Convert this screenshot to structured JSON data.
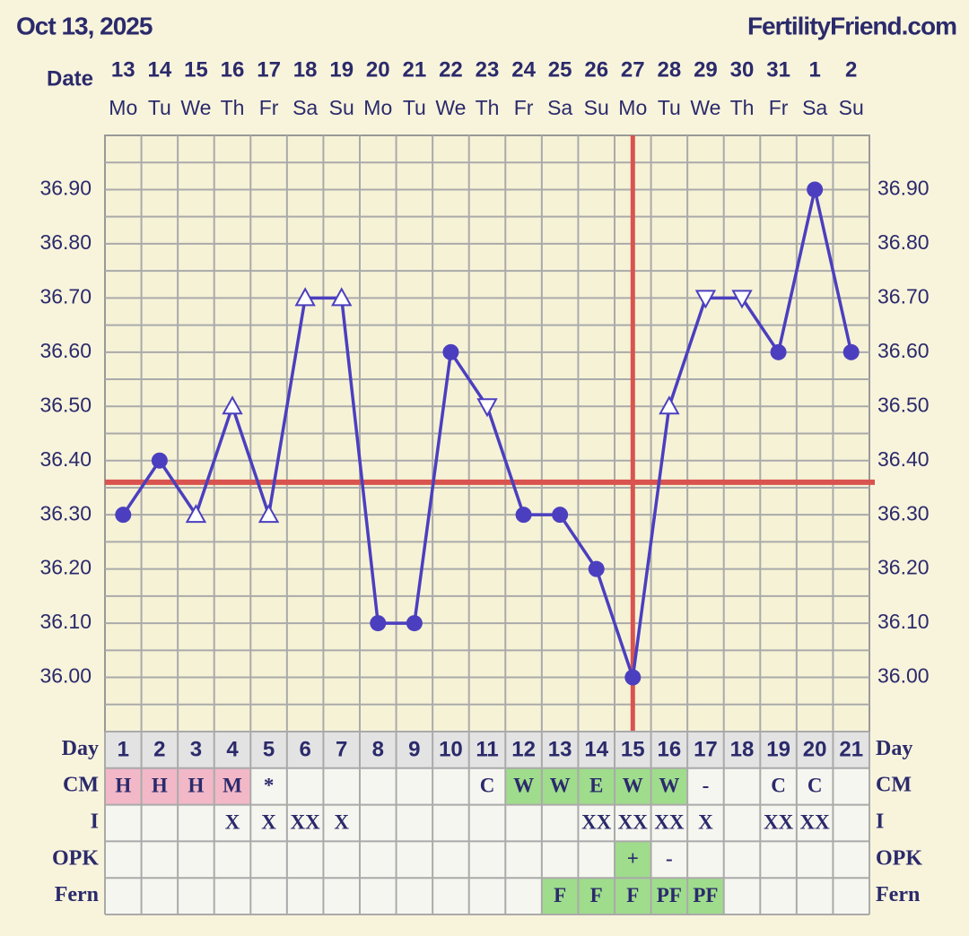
{
  "header": {
    "date": "Oct 13, 2025",
    "site": "FertilityFriend.com"
  },
  "chart_data": {
    "type": "line",
    "date_label": "Date",
    "dates": [
      "13",
      "14",
      "15",
      "16",
      "17",
      "18",
      "19",
      "20",
      "21",
      "22",
      "23",
      "24",
      "25",
      "26",
      "27",
      "28",
      "29",
      "30",
      "31",
      "1",
      "2"
    ],
    "weekdays": [
      "Mo",
      "Tu",
      "We",
      "Th",
      "Fr",
      "Sa",
      "Su",
      "Mo",
      "Tu",
      "We",
      "Th",
      "Fr",
      "Sa",
      "Su",
      "Mo",
      "Tu",
      "We",
      "Th",
      "Fr",
      "Sa",
      "Su"
    ],
    "values": [
      36.3,
      36.4,
      36.3,
      36.5,
      36.3,
      36.7,
      36.7,
      36.1,
      36.1,
      36.6,
      36.5,
      36.3,
      36.3,
      36.2,
      36.0,
      36.5,
      36.7,
      36.7,
      36.6,
      36.9,
      36.6
    ],
    "markers": [
      "circle",
      "circle",
      "up",
      "up",
      "up",
      "up",
      "up",
      "circle",
      "circle",
      "circle",
      "down",
      "circle",
      "circle",
      "circle",
      "circle",
      "up",
      "down",
      "down",
      "circle",
      "circle",
      "circle"
    ],
    "color": "#4b3fbf",
    "ylim": [
      35.9,
      37.0
    ],
    "yticks": [
      {
        "value": 36.0,
        "label": "36.00"
      },
      {
        "value": 36.1,
        "label": "36.10"
      },
      {
        "value": 36.2,
        "label": "36.20"
      },
      {
        "value": 36.3,
        "label": "36.30"
      },
      {
        "value": 36.4,
        "label": "36.40"
      },
      {
        "value": 36.5,
        "label": "36.50"
      },
      {
        "value": 36.6,
        "label": "36.60"
      },
      {
        "value": 36.7,
        "label": "36.70"
      },
      {
        "value": 36.8,
        "label": "36.80"
      },
      {
        "value": 36.9,
        "label": "36.90"
      }
    ],
    "grid": true,
    "coverline": 36.36,
    "ovulation_day": 15,
    "reference_color": "#d9534f",
    "day_label": "Day",
    "days": [
      1,
      2,
      3,
      4,
      5,
      6,
      7,
      8,
      9,
      10,
      11,
      12,
      13,
      14,
      15,
      16,
      17,
      18,
      19,
      20,
      21
    ],
    "rows": [
      {
        "label": "CM",
        "cells": [
          "H",
          "H",
          "H",
          "M",
          "*",
          null,
          null,
          null,
          null,
          null,
          "C",
          "W",
          "W",
          "E",
          "W",
          "W",
          "-",
          null,
          "C",
          "C",
          null
        ],
        "colors": [
          "#f2b8c8",
          "#f2b8c8",
          "#f2b8c8",
          "#f2b8c8",
          null,
          null,
          null,
          null,
          null,
          null,
          null,
          "#9fdc8c",
          "#9fdc8c",
          "#9fdc8c",
          "#9fdc8c",
          "#9fdc8c",
          null,
          null,
          null,
          null,
          null
        ]
      },
      {
        "label": "I",
        "cells": [
          null,
          null,
          null,
          "X",
          "X",
          "XX",
          "X",
          null,
          null,
          null,
          null,
          null,
          null,
          "XX",
          "XX",
          "XX",
          "X",
          null,
          "XX",
          "XX",
          null
        ]
      },
      {
        "label": "OPK",
        "cells": [
          null,
          null,
          null,
          null,
          null,
          null,
          null,
          null,
          null,
          null,
          null,
          null,
          null,
          null,
          "+",
          "-",
          null,
          null,
          null,
          null,
          null
        ],
        "colors": [
          null,
          null,
          null,
          null,
          null,
          null,
          null,
          null,
          null,
          null,
          null,
          null,
          null,
          null,
          "#9fdc8c",
          null,
          null,
          null,
          null,
          null,
          null
        ]
      },
      {
        "label": "Fern",
        "cells": [
          null,
          null,
          null,
          null,
          null,
          null,
          null,
          null,
          null,
          null,
          null,
          null,
          "F",
          "F",
          "F",
          "PF",
          "PF",
          null,
          null,
          null,
          null
        ],
        "colors": [
          null,
          null,
          null,
          null,
          null,
          null,
          null,
          null,
          null,
          null,
          null,
          null,
          "#9fdc8c",
          "#9fdc8c",
          "#9fdc8c",
          "#9fdc8c",
          "#9fdc8c",
          null,
          null,
          null,
          null
        ]
      }
    ]
  }
}
